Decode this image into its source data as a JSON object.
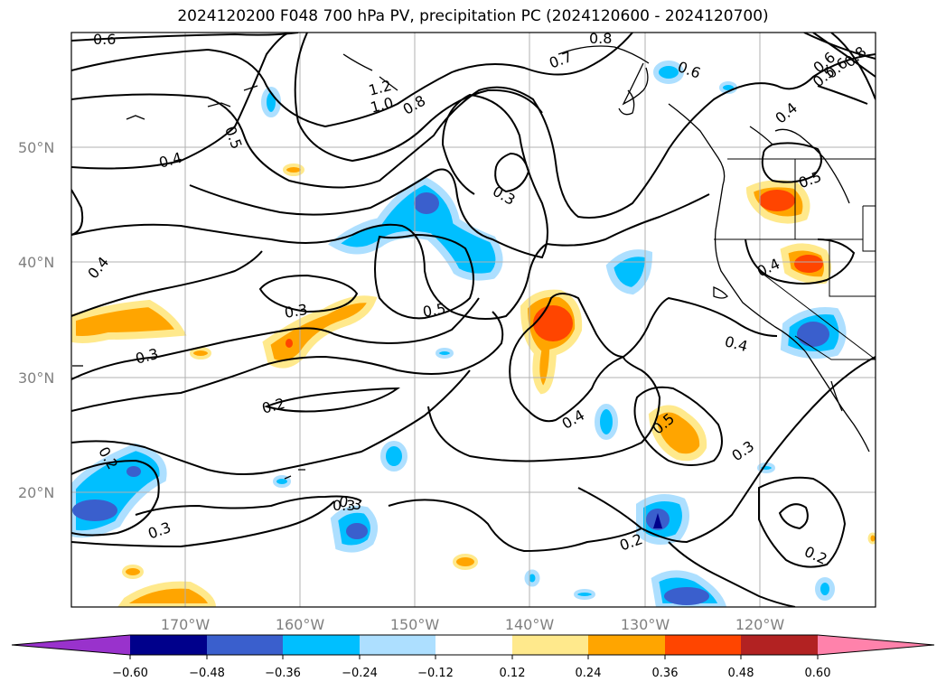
{
  "title": "2024120200 F048 700 hPa PV, precipitation PC (2024120600 - 2024120700)",
  "lat_labels": [
    "50°N",
    "40°N",
    "30°N",
    "20°N"
  ],
  "lon_labels": [
    "170°W",
    "160°W",
    "150°W",
    "140°W",
    "130°W",
    "120°W"
  ],
  "colorbar": {
    "colors": [
      "#9932CC",
      "#00008B",
      "#3A5FCD",
      "#00BFFF",
      "#ADDFFF",
      "#FFFFFF",
      "#FFE98C",
      "#FFA500",
      "#FF4500",
      "#B22222",
      "#FF82AB"
    ],
    "tick_labels": [
      "−0.60",
      "−0.48",
      "−0.36",
      "−0.24",
      "−0.12",
      "0.12",
      "0.24",
      "0.36",
      "0.48",
      "0.60"
    ]
  },
  "contour_labels": [
    "0.6",
    "0.8",
    "0.7",
    "0.6",
    "0.6",
    "0.8",
    "0.5",
    "0.6",
    "1.2",
    "1.0",
    "0.8",
    "0.5",
    "0.4",
    "0.4",
    "0.3",
    "0.5",
    "0.4",
    "0.4",
    "0.3",
    "0.5",
    "0.3",
    "0.4",
    "0.3",
    "0.2",
    "0.4",
    "0.5",
    "0.3",
    "0.2",
    "0.3",
    "0.3",
    "0.2",
    "0.2"
  ]
}
